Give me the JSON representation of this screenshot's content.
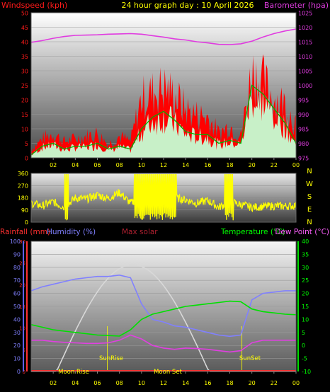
{
  "title": "24 hour graph day : 10 April 2026",
  "colors": {
    "wind_label": "#ff1a1a",
    "baro_label": "#e03ce0",
    "title": "#ffff00",
    "rain": "#ff3030",
    "humidity": "#8080ff",
    "solar": "#b02030",
    "temperature": "#00ff00",
    "dewpoint": "#ff60ff",
    "gust_fill": "#ff0000",
    "avg_fill": "#c8f0c8",
    "dir_line": "#ffff00",
    "sun_curve": "#d8d8d8"
  },
  "x_ticks": [
    "02",
    "04",
    "06",
    "08",
    "10",
    "12",
    "14",
    "16",
    "18",
    "20",
    "22",
    "00"
  ],
  "chart_data": [
    {
      "type": "area",
      "name": "wind-barometer",
      "left_label": "Windspeed (kph)",
      "right_label": "Barometer (hpa)",
      "left_ticks": [
        "0",
        "5",
        "10",
        "15",
        "20",
        "25",
        "30",
        "35",
        "40",
        "45",
        "50"
      ],
      "right_ticks": [
        "975",
        "980",
        "985",
        "990",
        "995",
        "1000",
        "1005",
        "1010",
        "1015",
        "1020",
        "1025"
      ],
      "ylim_left": [
        0,
        50
      ],
      "ylim_right": [
        975,
        1025
      ],
      "x_hours": [
        0,
        1,
        2,
        3,
        4,
        5,
        6,
        7,
        8,
        9,
        10,
        11,
        12,
        13,
        14,
        15,
        16,
        17,
        18,
        19,
        20,
        21,
        22,
        23,
        24
      ],
      "gust": [
        3,
        7,
        9,
        6,
        7,
        8,
        9,
        5,
        8,
        6,
        22,
        24,
        26,
        23,
        18,
        16,
        15,
        9,
        12,
        8,
        32,
        28,
        22,
        20,
        12
      ],
      "average": [
        1,
        4,
        5,
        3,
        4,
        4,
        5,
        3,
        4,
        3,
        10,
        14,
        16,
        13,
        9,
        8,
        8,
        5,
        6,
        5,
        25,
        22,
        17,
        12,
        5
      ],
      "barometer": [
        1014.8,
        1015.4,
        1016.2,
        1016.8,
        1017.2,
        1017.3,
        1017.4,
        1017.6,
        1017.7,
        1017.8,
        1017.6,
        1017.1,
        1016.6,
        1016.0,
        1015.6,
        1015.0,
        1014.6,
        1014.1,
        1014.0,
        1014.3,
        1015.2,
        1016.6,
        1017.8,
        1018.7,
        1019.4
      ]
    },
    {
      "type": "line",
      "name": "wind-direction",
      "left_ticks": [
        "0",
        "90",
        "180",
        "270",
        "360"
      ],
      "right_ticks": [
        "N",
        "E",
        "S",
        "W",
        "N"
      ],
      "ylim": [
        0,
        360
      ],
      "x_hours": [
        0,
        1,
        2,
        3,
        4,
        5,
        6,
        7,
        8,
        9,
        10,
        11,
        12,
        13,
        14,
        15,
        16,
        17,
        18,
        19,
        20,
        21,
        22,
        23,
        24
      ],
      "direction": [
        140,
        120,
        150,
        110,
        180,
        170,
        200,
        175,
        220,
        140,
        190,
        170,
        150,
        180,
        165,
        140,
        160,
        110,
        150,
        130,
        110,
        115,
        120,
        118,
        122
      ]
    },
    {
      "type": "line",
      "name": "temperature-humidity",
      "left_labels": [
        "Rainfall (mm)",
        "Humidity (%)",
        "Max solar"
      ],
      "right_labels": [
        "Temperature (°C)",
        "Dew Point (°C)"
      ],
      "left_ticks": [
        "0",
        "10",
        "20",
        "30",
        "40",
        "50",
        "60",
        "70",
        "80",
        "90",
        "100"
      ],
      "left_ticks_red": [
        "0",
        "5",
        "10",
        "15",
        "20",
        "25",
        "30"
      ],
      "right_ticks": [
        "-10",
        "-5",
        "0",
        "5",
        "10",
        "15",
        "20",
        "25",
        "30",
        "35",
        "40"
      ],
      "ylim_humidity": [
        0,
        100
      ],
      "ylim_temp": [
        -10,
        40
      ],
      "annotations": [
        "Moon Rise",
        "SunRise",
        "Moon Set",
        "SunSet"
      ],
      "x_hours": [
        0,
        1,
        2,
        3,
        4,
        5,
        6,
        7,
        8,
        9,
        10,
        11,
        12,
        13,
        14,
        15,
        16,
        17,
        18,
        19,
        20,
        21,
        22,
        23,
        24
      ],
      "humidity": [
        62,
        65,
        67,
        69,
        71,
        72,
        73,
        73,
        74,
        72,
        52,
        40,
        38,
        35,
        34,
        32,
        30,
        28,
        27,
        28,
        55,
        60,
        61,
        62,
        62
      ],
      "temperature": [
        8,
        7,
        6,
        5.5,
        5,
        4.5,
        4,
        3.8,
        3.6,
        6,
        10,
        12,
        13,
        14,
        15,
        15.5,
        16,
        16.5,
        17,
        16.8,
        14,
        13,
        12.5,
        12,
        11.8
      ],
      "dewpoint": [
        2,
        2,
        1.5,
        1.2,
        1.0,
        0.8,
        0.8,
        1,
        2,
        4,
        2.5,
        0,
        -1,
        -1.5,
        -1,
        -1.2,
        -1.5,
        -2,
        -2.5,
        -2,
        1,
        2,
        2,
        2,
        2
      ],
      "max_solar": [
        0,
        0,
        0,
        0,
        0,
        100,
        320,
        560,
        760,
        820,
        760,
        560,
        320,
        100,
        0,
        0,
        0,
        0,
        0,
        0,
        0,
        0,
        0,
        0,
        0
      ],
      "max_solar_ylim": [
        0,
        1000
      ]
    }
  ]
}
